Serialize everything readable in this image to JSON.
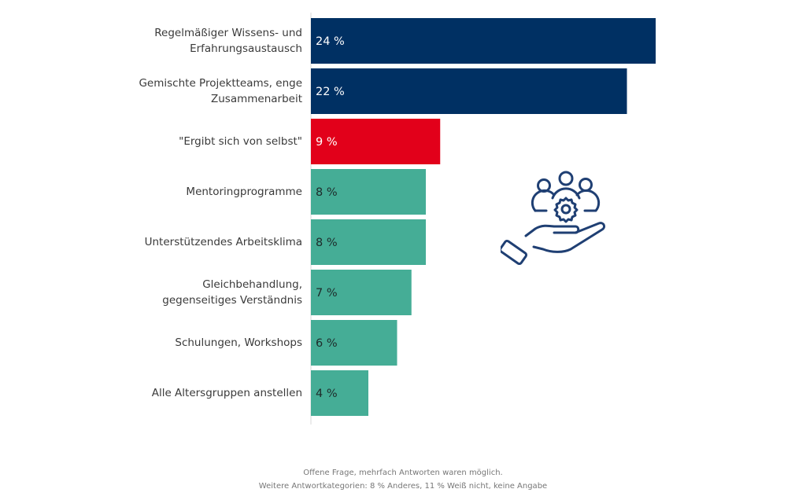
{
  "chart_data": {
    "type": "bar",
    "orientation": "horizontal",
    "categories": [
      "Regelmäßiger Wissens- und Erfahrungsaustausch",
      "Gemischte Projektteams, enge Zusammenarbeit",
      "\"Ergibt sich von selbst\"",
      "Mentoringprogramme",
      "Unterstützendes Arbeitsklima",
      "Gleichbehandlung, gegenseitiges Verständnis",
      "Schulungen, Workshops",
      "Alle Altersgruppen anstellen"
    ],
    "category_lines": [
      [
        "Regelmäßiger Wissens- und",
        "Erfahrungsaustausch"
      ],
      [
        "Gemischte Projektteams, enge",
        "Zusammenarbeit"
      ],
      [
        "\"Ergibt sich von selbst\""
      ],
      [
        "Mentoringprogramme"
      ],
      [
        "Unterstützendes Arbeitsklima"
      ],
      [
        "Gleichbehandlung,",
        "gegenseitiges Verständnis"
      ],
      [
        "Schulungen, Workshops"
      ],
      [
        "Alle Altersgruppen anstellen"
      ]
    ],
    "values": [
      24,
      22,
      9,
      8,
      8,
      7,
      6,
      4
    ],
    "data_labels": [
      "24 %",
      "22 %",
      "9 %",
      "8 %",
      "8 %",
      "7 %",
      "6 %",
      "4 %"
    ],
    "bar_colors": [
      "#003063",
      "#003063",
      "#e2001a",
      "#45ad96",
      "#45ad96",
      "#45ad96",
      "#45ad96",
      "#45ad96"
    ],
    "label_colors": [
      "#ffffff",
      "#ffffff",
      "#ffffff",
      "#1e2a2a",
      "#1e2a2a",
      "#1e2a2a",
      "#1e2a2a",
      "#1e2a2a"
    ],
    "xlim": [
      0,
      24
    ],
    "grid": false,
    "unit": "%"
  },
  "footnote": {
    "line1": "Offene Frage, mehrfach Antworten waren möglich.",
    "line2": "Weitere Antwortkategorien: 8 % Anderes, 11 % Weiß nicht, keine Angabe"
  },
  "icon": {
    "name": "hand-with-team-gear-icon",
    "color": "#1f3f73"
  }
}
